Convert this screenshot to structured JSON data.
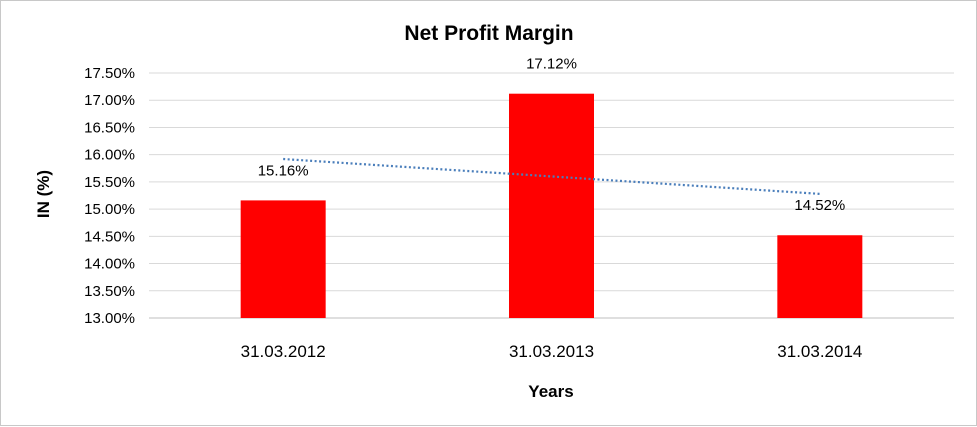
{
  "chart_data": {
    "type": "bar",
    "title": "Net Profit Margin",
    "xlabel": "Years",
    "ylabel": "IN (%)",
    "categories": [
      "31.03.2012",
      "31.03.2013",
      "31.03.2014"
    ],
    "values": [
      15.16,
      17.12,
      14.52
    ],
    "data_labels": [
      "15.16%",
      "17.12%",
      "14.52%"
    ],
    "ylim": [
      13.0,
      17.5
    ],
    "yticks": [
      13.0,
      13.5,
      14.0,
      14.5,
      15.0,
      15.5,
      16.0,
      16.5,
      17.0,
      17.5
    ],
    "ytick_labels": [
      "13.00%",
      "13.50%",
      "14.00%",
      "14.50%",
      "15.00%",
      "15.50%",
      "16.00%",
      "16.50%",
      "17.00%",
      "17.50%"
    ],
    "grid": true,
    "legend": "none",
    "trendline": {
      "type": "linear",
      "style": "dotted"
    },
    "colors": {
      "bar": "#ff0000",
      "trendline": "#4a7ebb",
      "grid": "#d9d9d9",
      "axis": "#bfbfbf"
    }
  }
}
